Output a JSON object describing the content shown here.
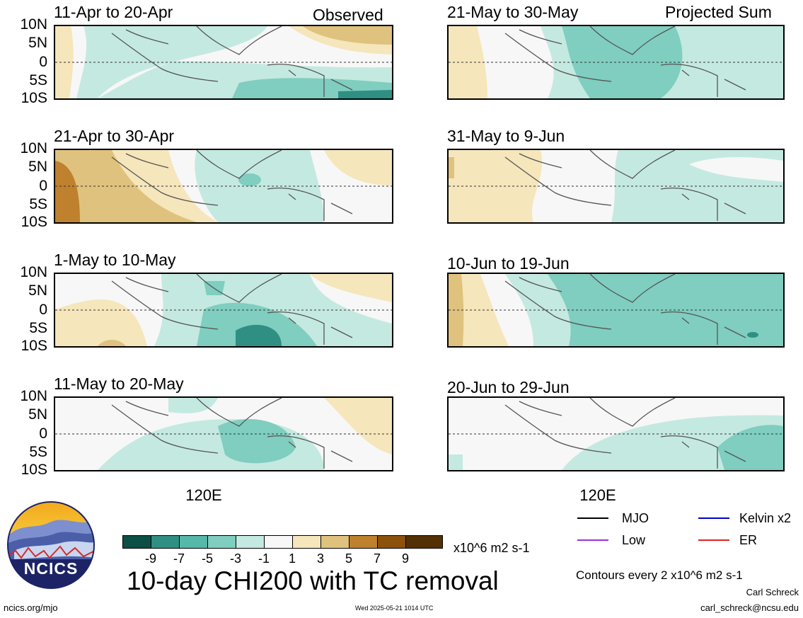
{
  "header": {
    "left_label": "Observed",
    "right_label": "Projected Sum"
  },
  "panels": {
    "left": [
      {
        "title": "11-Apr to 20-Apr"
      },
      {
        "title": "21-Apr to 30-Apr"
      },
      {
        "title": "1-May to 10-May"
      },
      {
        "title": "11-May to 20-May"
      }
    ],
    "right": [
      {
        "title": "21-May to 30-May"
      },
      {
        "title": "31-May to 9-Jun"
      },
      {
        "title": "10-Jun to 19-Jun"
      },
      {
        "title": "20-Jun to 29-Jun"
      }
    ]
  },
  "axes": {
    "lat_labels": [
      "10N",
      "5N",
      "0",
      "5S",
      "10S"
    ],
    "lon_label": "120E"
  },
  "colorbar": {
    "colors": [
      "#0b4f45",
      "#2f8f83",
      "#55b8a8",
      "#7fcebf",
      "#c4e9e1",
      "#f7f7f7",
      "#f5e6bb",
      "#dfc27d",
      "#bf812d",
      "#8c510a",
      "#543005"
    ],
    "ticks": [
      "-9",
      "-7",
      "-5",
      "-3",
      "-1",
      "1",
      "3",
      "5",
      "7",
      "9"
    ],
    "units": "x10^6 m2 s-1"
  },
  "main_title": "10-day CHI200 with TC removal",
  "logo": {
    "text": "NCICS"
  },
  "legend": {
    "items": [
      {
        "label": "MJO",
        "color": "#000000"
      },
      {
        "label": "Kelvin x2",
        "color": "#0000cc"
      },
      {
        "label": "Low",
        "color": "#9b30d9"
      },
      {
        "label": "ER",
        "color": "#dd2222"
      }
    ],
    "contour_note": "Contours every 2 x10^6 m2 s-1"
  },
  "footer": {
    "url": "ncics.org/mjo",
    "timestamp": "Wed 2025-05-21 1014 UTC",
    "author": "Carl Schreck",
    "email": "carl_schreck@ncsu.edu"
  }
}
